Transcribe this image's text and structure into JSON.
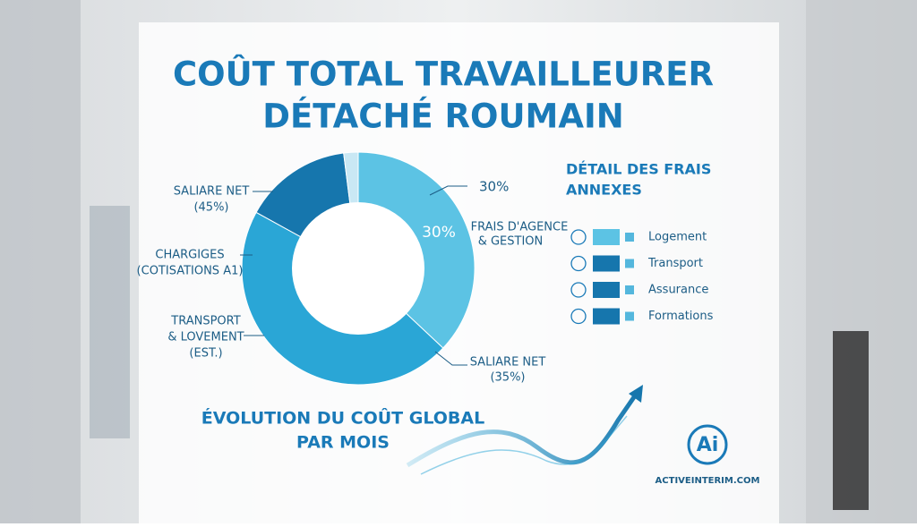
{
  "title": [
    "COÛT TOTAL TRAVAILLEURER",
    "DÉTACHÉ ROUMAIN"
  ],
  "donut": {
    "type": "donut",
    "values": [
      37,
      46,
      15,
      2
    ],
    "colors": [
      "#5cc3e4",
      "#2aa6d6",
      "#1676ad",
      "#c9e8f4"
    ]
  },
  "left_labels": [
    [
      "SALIARE NET",
      "(45%)"
    ],
    [
      "CHARGIGES",
      "(COTISATIONS A1)"
    ],
    [
      "TRANSPORT",
      "& LOVEMENT",
      "(EST.)"
    ]
  ],
  "right_labels": {
    "top": "30%",
    "inner": "30%",
    "agency": [
      "FRAIS D'AGENCE",
      "& GESTION"
    ],
    "net": [
      "SALIARE NET",
      "(35%)"
    ]
  },
  "detail": {
    "title": [
      "DÉTAIL DES FRAIS",
      "ANNEXES"
    ],
    "items": [
      "Logement",
      "Transport",
      "Assurance",
      "Formations"
    ]
  },
  "evolution": [
    "ÉVOLUTION DU COÛT GLOBAL",
    "PAR MOIS"
  ],
  "brand": {
    "logo": "Ai",
    "site": "ACTIVEINTERIM.COM"
  }
}
